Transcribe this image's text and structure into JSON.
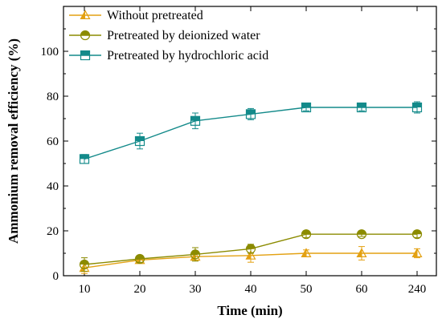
{
  "chart_data": {
    "type": "line",
    "xlabel": "Time (min)",
    "ylabel": "Ammonium removal efficiency (%)",
    "categories": [
      "10",
      "20",
      "30",
      "40",
      "50",
      "60",
      "240"
    ],
    "ylim": [
      0,
      120
    ],
    "yticks": [
      0,
      20,
      40,
      60,
      80,
      100
    ],
    "legend_position": "top-left",
    "series": [
      {
        "name": "Without pretreated",
        "color": "#E3A112",
        "marker": "triangle",
        "values": [
          3.5,
          7,
          8.5,
          9,
          10,
          10,
          10
        ],
        "errors": [
          2.5,
          1.5,
          1.5,
          3,
          1.5,
          3,
          2
        ]
      },
      {
        "name": "Pretreated by deionized water",
        "color": "#8B8B00",
        "marker": "circle",
        "values": [
          5,
          7.5,
          9.5,
          12,
          18.5,
          18.5,
          18.5
        ],
        "errors": [
          3,
          1.5,
          3,
          2,
          1.5,
          1,
          1.5
        ]
      },
      {
        "name": "Pretreated by hydrochloric acid",
        "color": "#138A8A",
        "marker": "square",
        "values": [
          52,
          60,
          69,
          72,
          75,
          75,
          75
        ],
        "errors": [
          2,
          3.5,
          3.5,
          2.5,
          1.5,
          1.5,
          2.5
        ]
      }
    ]
  }
}
